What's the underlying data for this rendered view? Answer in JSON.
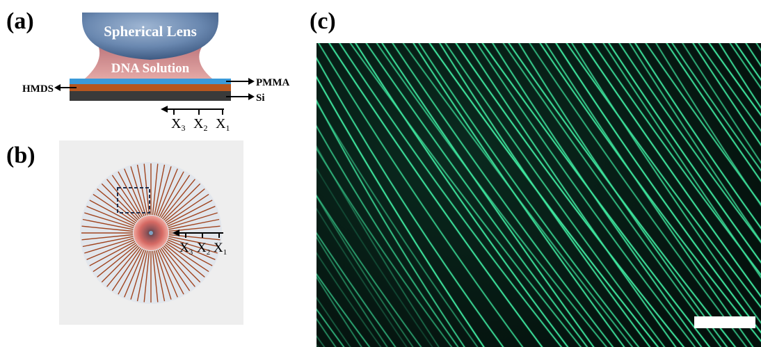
{
  "panels": {
    "a": {
      "label": "(a)",
      "lens_label": "Spherical  Lens",
      "solution_label": "DNA Solution",
      "hmds_label": "HMDS",
      "pmma_label": "PMMA",
      "si_label": "Si",
      "positions": [
        "X3",
        "X2",
        "X1"
      ],
      "colors": {
        "lens": "#5f7fa8",
        "solution": "#c98a8a",
        "pmma": "#3a9ad9",
        "hmds": "#b5561f",
        "si": "#3a3a3a"
      }
    },
    "b": {
      "label": "(b)",
      "positions": [
        "X3",
        "X2",
        "X1"
      ],
      "colors": {
        "background": "#eeeeee",
        "disk": "#e2e6ec",
        "line": "#a0441f",
        "center": "#d66a64",
        "box": "#2a3a5a"
      }
    },
    "c": {
      "label": "(c)",
      "colors": {
        "background": "#06140f",
        "fiber": "#3fe9a0",
        "scale_bar": "#ffffff"
      }
    }
  }
}
